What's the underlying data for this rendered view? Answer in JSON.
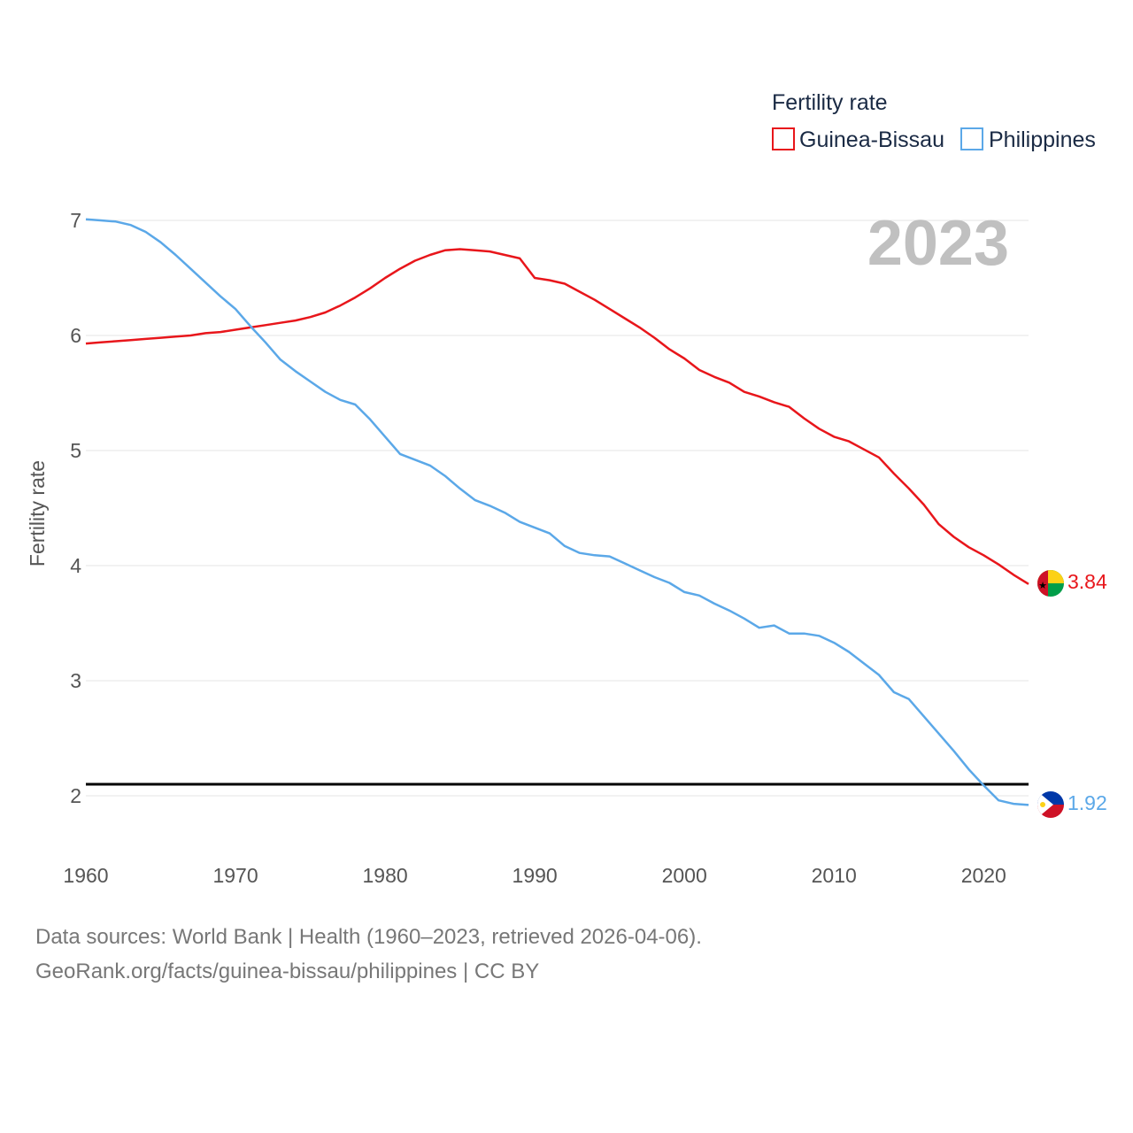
{
  "colors": {
    "guinea_bissau": "#e8161b",
    "philippines": "#5ba8e8",
    "grid": "#e6e6e6",
    "reference": "#000000"
  },
  "legend": {
    "title": "Fertility rate",
    "items": [
      "Guinea-Bissau",
      "Philippines"
    ]
  },
  "year_label": "2023",
  "end_labels": {
    "guinea_bissau": "3.84",
    "philippines": "1.92"
  },
  "sources": {
    "line1": "Data sources: World Bank | Health (1960–2023, retrieved 2026-04-06).",
    "line2": "GeoRank.org/facts/guinea-bissau/philippines | CC BY"
  },
  "flags": {
    "guinea_bissau": "guinea-bissau-flag-icon",
    "philippines": "philippines-flag-icon"
  },
  "chart_data": {
    "type": "line",
    "title": "",
    "xlabel": "",
    "ylabel": "Fertility rate",
    "xlim": [
      1960,
      2023
    ],
    "ylim": [
      1.5,
      7.2
    ],
    "x_ticks": [
      1960,
      1970,
      1980,
      1990,
      2000,
      2010,
      2020
    ],
    "y_ticks": [
      2,
      3,
      4,
      5,
      6,
      7
    ],
    "reference_line": 2.1,
    "x": [
      1960,
      1961,
      1962,
      1963,
      1964,
      1965,
      1966,
      1967,
      1968,
      1969,
      1970,
      1971,
      1972,
      1973,
      1974,
      1975,
      1976,
      1977,
      1978,
      1979,
      1980,
      1981,
      1982,
      1983,
      1984,
      1985,
      1986,
      1987,
      1988,
      1989,
      1990,
      1991,
      1992,
      1993,
      1994,
      1995,
      1996,
      1997,
      1998,
      1999,
      2000,
      2001,
      2002,
      2003,
      2004,
      2005,
      2006,
      2007,
      2008,
      2009,
      2010,
      2011,
      2012,
      2013,
      2014,
      2015,
      2016,
      2017,
      2018,
      2019,
      2020,
      2021,
      2022,
      2023
    ],
    "series": [
      {
        "name": "Guinea-Bissau",
        "values": [
          5.93,
          5.94,
          5.95,
          5.96,
          5.97,
          5.98,
          5.99,
          6.0,
          6.02,
          6.03,
          6.05,
          6.07,
          6.09,
          6.11,
          6.13,
          6.16,
          6.2,
          6.26,
          6.33,
          6.41,
          6.5,
          6.58,
          6.65,
          6.7,
          6.74,
          6.75,
          6.74,
          6.73,
          6.7,
          6.67,
          6.5,
          6.48,
          6.45,
          6.38,
          6.31,
          6.23,
          6.15,
          6.07,
          5.98,
          5.88,
          5.8,
          5.7,
          5.64,
          5.59,
          5.51,
          5.47,
          5.42,
          5.38,
          5.28,
          5.19,
          5.12,
          5.08,
          5.01,
          4.94,
          4.8,
          4.67,
          4.53,
          4.36,
          4.25,
          4.16,
          4.09,
          4.01,
          3.92,
          3.84
        ]
      },
      {
        "name": "Philippines",
        "values": [
          7.01,
          7.0,
          6.99,
          6.96,
          6.9,
          6.81,
          6.7,
          6.58,
          6.46,
          6.34,
          6.23,
          6.08,
          5.94,
          5.79,
          5.69,
          5.6,
          5.51,
          5.44,
          5.4,
          5.27,
          5.12,
          4.97,
          4.92,
          4.87,
          4.78,
          4.67,
          4.57,
          4.52,
          4.46,
          4.38,
          4.33,
          4.28,
          4.17,
          4.11,
          4.09,
          4.08,
          4.02,
          3.96,
          3.9,
          3.85,
          3.77,
          3.74,
          3.67,
          3.61,
          3.54,
          3.46,
          3.48,
          3.41,
          3.41,
          3.39,
          3.33,
          3.25,
          3.15,
          3.05,
          2.9,
          2.84,
          2.69,
          2.54,
          2.39,
          2.23,
          2.09,
          1.96,
          1.93,
          1.92
        ]
      }
    ]
  }
}
